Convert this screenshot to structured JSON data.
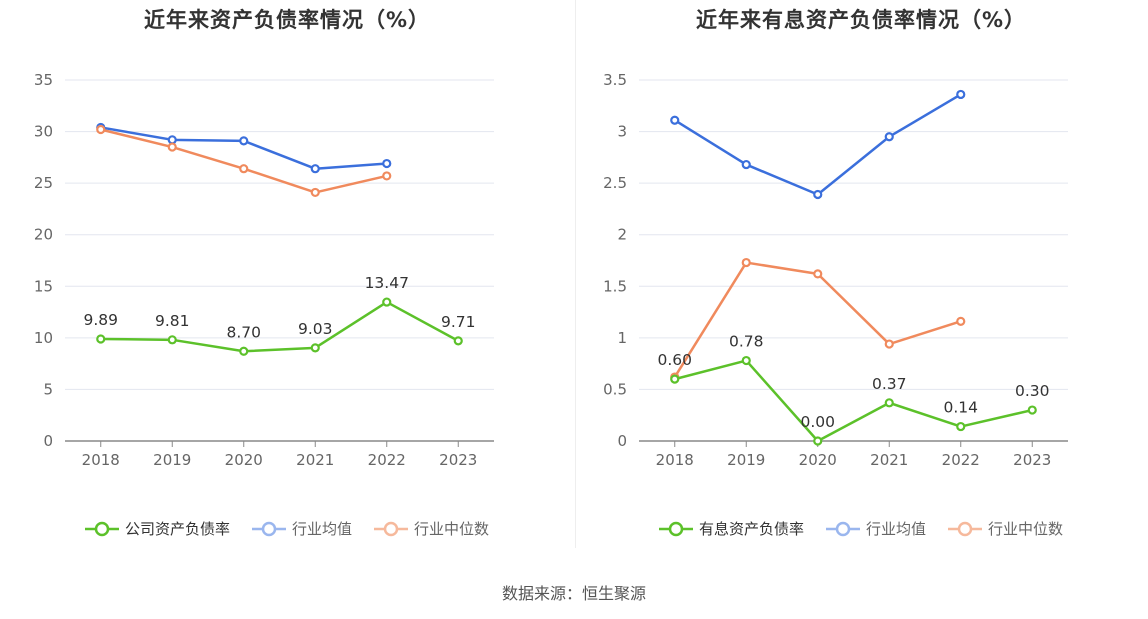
{
  "source": "数据来源：恒生聚源",
  "chart_data": [
    {
      "type": "line",
      "title": "近年来资产负债率情况（%）",
      "categories": [
        "2018",
        "2019",
        "2020",
        "2021",
        "2022",
        "2023"
      ],
      "ylim": [
        0,
        35
      ],
      "yticks": [
        0,
        5,
        10,
        15,
        20,
        25,
        30,
        35
      ],
      "ytick_labels": [
        "0",
        "5",
        "10",
        "15",
        "20",
        "25",
        "30",
        "35"
      ],
      "grid": true,
      "legend_position": "bottom",
      "series": [
        {
          "name": "公司资产负债率",
          "color": "#5cc12a",
          "values": [
            9.89,
            9.81,
            8.7,
            9.03,
            13.47,
            9.71
          ],
          "labels": [
            "9.89",
            "9.81",
            "8.70",
            "9.03",
            "13.47",
            "9.71"
          ]
        },
        {
          "name": "行业均值",
          "color": "#3b6fdc",
          "values": [
            30.4,
            29.2,
            29.1,
            26.4,
            26.9,
            null
          ]
        },
        {
          "name": "行业中位数",
          "color": "#f08a5d",
          "values": [
            30.2,
            28.5,
            26.4,
            24.1,
            25.7,
            null
          ]
        }
      ]
    },
    {
      "type": "line",
      "title": "近年来有息资产负债率情况（%）",
      "categories": [
        "2018",
        "2019",
        "2020",
        "2021",
        "2022",
        "2023"
      ],
      "ylim": [
        0,
        3.5
      ],
      "yticks": [
        0,
        0.5,
        1,
        1.5,
        2,
        2.5,
        3,
        3.5
      ],
      "ytick_labels": [
        "0",
        "0.5",
        "1",
        "1.5",
        "2",
        "2.5",
        "3",
        "3.5"
      ],
      "grid": true,
      "legend_position": "bottom",
      "series": [
        {
          "name": "有息资产负债率",
          "color": "#5cc12a",
          "values": [
            0.6,
            0.78,
            0.0,
            0.37,
            0.14,
            0.3
          ],
          "labels": [
            "0.60",
            "0.78",
            "0.00",
            "0.37",
            "0.14",
            "0.30"
          ]
        },
        {
          "name": "行业均值",
          "color": "#3b6fdc",
          "values": [
            3.11,
            2.68,
            2.39,
            2.95,
            3.36,
            null
          ]
        },
        {
          "name": "行业中位数",
          "color": "#f08a5d",
          "values": [
            0.62,
            1.73,
            1.62,
            0.94,
            1.16,
            null
          ]
        }
      ]
    }
  ]
}
